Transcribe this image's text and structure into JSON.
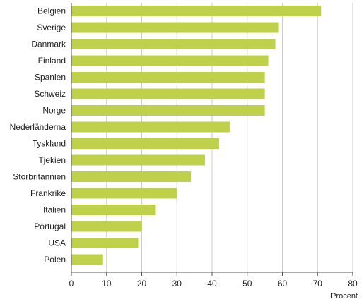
{
  "chart_data": {
    "type": "bar",
    "orientation": "horizontal",
    "categories": [
      "Belgien",
      "Sverige",
      "Danmark",
      "Finland",
      "Spanien",
      "Schweiz",
      "Norge",
      "Nederländerna",
      "Tyskland",
      "Tjekien",
      "Storbritannien",
      "Frankrike",
      "Italien",
      "Portugal",
      "USA",
      "Polen"
    ],
    "values": [
      71,
      59,
      58,
      56,
      55,
      55,
      55,
      45,
      42,
      38,
      34,
      30,
      24,
      20,
      19,
      9
    ],
    "xlabel": "Procent",
    "xlim": [
      0,
      80
    ],
    "xticks": [
      "0",
      "10",
      "20",
      "30",
      "40",
      "50",
      "60",
      "70",
      "80"
    ],
    "grid": "vertical",
    "bar_color": "#bfd14b",
    "grid_color": "#cccccc",
    "axis_color": "#555555"
  }
}
